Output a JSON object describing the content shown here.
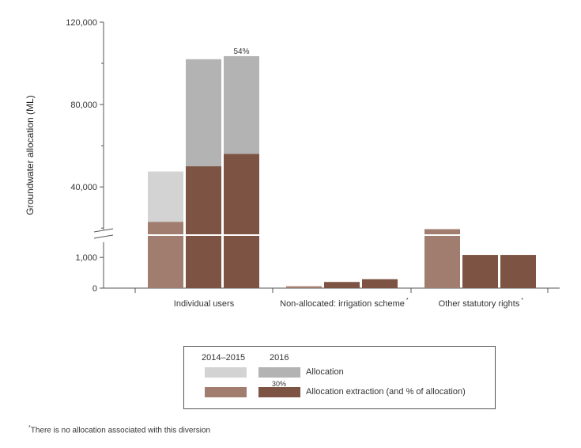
{
  "colors": {
    "alloc_2014": "#d3d3d3",
    "alloc_2016": "#b3b3b3",
    "extr_2014": "#a17d6f",
    "extr_2016": "#7d5443",
    "axis": "#555555"
  },
  "chart_data": {
    "type": "bar",
    "ylabel": "Groundwater allocation (ML)",
    "axis_break": true,
    "y_upper_ticks": [
      "40,000",
      "80,000",
      "120,000"
    ],
    "y_lower_ticks": [
      "0",
      "1,000"
    ],
    "y_upper_range": [
      17000,
      120000
    ],
    "y_lower_range": [
      0,
      1700
    ],
    "categories": [
      {
        "label": "Individual users",
        "footnote": ""
      },
      {
        "label": "Non-allocated: irrigation scheme",
        "footnote": "*"
      },
      {
        "label": "Other statutory rights",
        "footnote": "*"
      }
    ],
    "bars": [
      {
        "category": 0,
        "series": "extr_2014",
        "value": 23000
      },
      {
        "category": 0,
        "series": "alloc_2014",
        "value": 47500
      },
      {
        "category": 0,
        "series": "extr_2016",
        "value": 50000
      },
      {
        "category": 0,
        "series": "alloc_2016",
        "value": 102000
      },
      {
        "category": 0,
        "series": "extr_2016",
        "value": 56000
      },
      {
        "category": 0,
        "series": "alloc_2016",
        "value": 103500,
        "label": "54%"
      },
      {
        "category": 1,
        "series": "extr_2014",
        "value": 60
      },
      {
        "category": 1,
        "series": "extr_2016",
        "value": 200
      },
      {
        "category": 1,
        "series": "extr_2016",
        "value": 290
      },
      {
        "category": 2,
        "series": "extr_2014",
        "value": 19500
      },
      {
        "category": 2,
        "series": "extr_2016",
        "value": 1080
      },
      {
        "category": 2,
        "series": "extr_2016",
        "value": 1080
      }
    ]
  },
  "legend": {
    "header_2014": "2014–2015",
    "header_2016": "2016",
    "allocation_label": "Allocation",
    "extraction_label": "Allocation extraction (and % of allocation)",
    "extraction_pct": "30%"
  },
  "footnote": {
    "marker": "*",
    "text": "There is no allocation associated with this diversion"
  }
}
